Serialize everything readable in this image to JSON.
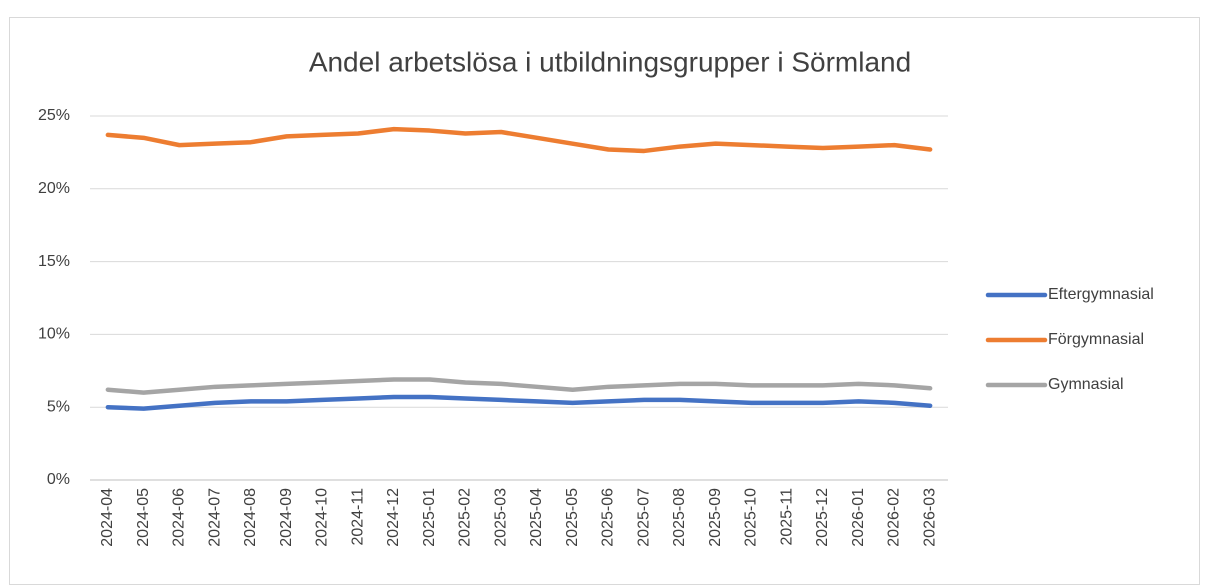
{
  "chart_data": {
    "type": "line",
    "title": "Andel arbetslösa i utbildningsgrupper i Sörmland",
    "categories": [
      "2024-04",
      "2024-05",
      "2024-06",
      "2024-07",
      "2024-08",
      "2024-09",
      "2024-10",
      "2024-11",
      "2024-12",
      "2025-01",
      "2025-02",
      "2025-03",
      "2025-04",
      "2025-05",
      "2025-06",
      "2025-07",
      "2025-08",
      "2025-09",
      "2025-10",
      "2025-11",
      "2025-12",
      "2026-01",
      "2026-02",
      "2026-03"
    ],
    "series": [
      {
        "name": "Eftergymnasial",
        "color": "#4472c4",
        "values": [
          5.0,
          4.9,
          5.1,
          5.3,
          5.4,
          5.4,
          5.5,
          5.6,
          5.7,
          5.7,
          5.6,
          5.5,
          5.4,
          5.3,
          5.4,
          5.5,
          5.5,
          5.4,
          5.3,
          5.3,
          5.3,
          5.4,
          5.3,
          5.1
        ]
      },
      {
        "name": "Förgymnasial",
        "color": "#ed7d31",
        "values": [
          23.7,
          23.5,
          23.0,
          23.1,
          23.2,
          23.6,
          23.7,
          23.8,
          24.1,
          24.0,
          23.8,
          23.9,
          23.5,
          23.1,
          22.7,
          22.6,
          22.9,
          23.1,
          23.0,
          22.9,
          22.8,
          22.9,
          23.0,
          22.7
        ]
      },
      {
        "name": "Gymnasial",
        "color": "#a5a5a5",
        "values": [
          6.2,
          6.0,
          6.2,
          6.4,
          6.5,
          6.6,
          6.7,
          6.8,
          6.9,
          6.9,
          6.7,
          6.6,
          6.4,
          6.2,
          6.4,
          6.5,
          6.6,
          6.6,
          6.5,
          6.5,
          6.5,
          6.6,
          6.5,
          6.3
        ]
      }
    ],
    "ylim": [
      0,
      25
    ],
    "yticks": [
      {
        "value": 0,
        "label": "0%"
      },
      {
        "value": 5,
        "label": "5%"
      },
      {
        "value": 10,
        "label": "10%"
      },
      {
        "value": 15,
        "label": "15%"
      },
      {
        "value": 20,
        "label": "20%"
      },
      {
        "value": 25,
        "label": "25%"
      }
    ],
    "grid": true,
    "legend": "right"
  }
}
